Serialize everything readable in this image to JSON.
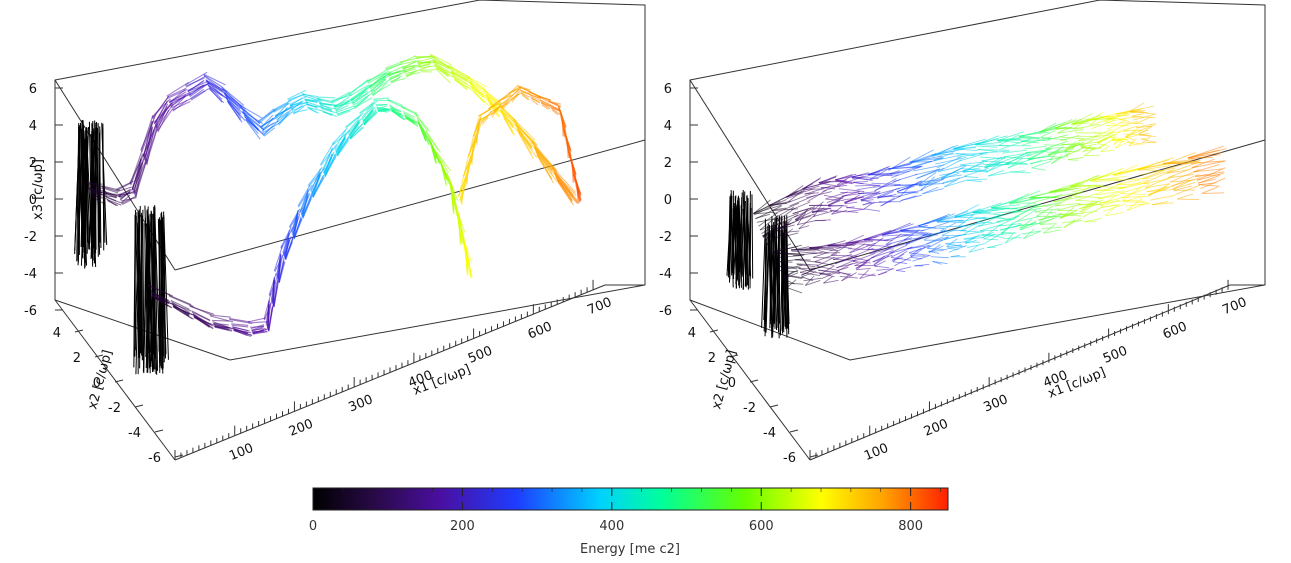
{
  "chart_data": [
    {
      "type": "scatter",
      "panel": "left",
      "x1_ticks": [
        "100",
        "200",
        "300",
        "400",
        "500",
        "600",
        "700"
      ],
      "x2_ticks": [
        "4",
        "2",
        "0",
        "-2",
        "-4",
        "-6"
      ],
      "x3_ticks": [
        "6",
        "4",
        "2",
        "0",
        "-2",
        "-4",
        "-6"
      ],
      "x1_label": "x1 [c/ωp]",
      "x2_label": "x2 [c/ωp]",
      "x3_label": "x3 [c/ωp]",
      "x1_range": [
        0,
        700
      ],
      "x2_range": [
        -6,
        6
      ],
      "x3_range": [
        -6,
        6
      ],
      "description_series": [
        {
          "x1": [
            0,
            50,
            120,
            200,
            260,
            330,
            400,
            460
          ],
          "energy": [
            0,
            80,
            200,
            320,
            420,
            520,
            620,
            700
          ]
        },
        {
          "x1": [
            40,
            100,
            180,
            260,
            340,
            420,
            500,
            580
          ],
          "energy": [
            0,
            100,
            240,
            380,
            500,
            620,
            740,
            840
          ]
        }
      ]
    },
    {
      "type": "scatter",
      "panel": "right",
      "x1_ticks": [
        "100",
        "200",
        "300",
        "400",
        "500",
        "600",
        "700"
      ],
      "x2_ticks": [
        "4",
        "2",
        "0",
        "-2",
        "-4",
        "-6"
      ],
      "x3_ticks": [
        "6",
        "4",
        "2",
        "0",
        "-2",
        "-4",
        "-6"
      ],
      "x1_label": "x1 [c/ωp]",
      "x2_label": "x2 [c/ωp]",
      "x3_label": "x3 [c/ωp]",
      "x1_range": [
        0,
        700
      ],
      "x2_range": [
        -6,
        6
      ],
      "x3_range": [
        -6,
        6
      ]
    }
  ],
  "colorbar": {
    "ticks": [
      "0",
      "200",
      "400",
      "600",
      "800"
    ],
    "tick_values": [
      0,
      200,
      400,
      600,
      800
    ],
    "range": [
      0,
      850
    ],
    "label": "Energy [me c2]",
    "colors": [
      "#000000",
      "#3a0a5a",
      "#5a0fa8",
      "#1e3cff",
      "#00c8ff",
      "#00ff99",
      "#7fff00",
      "#ffff00",
      "#ffa500",
      "#ff2a00"
    ]
  }
}
